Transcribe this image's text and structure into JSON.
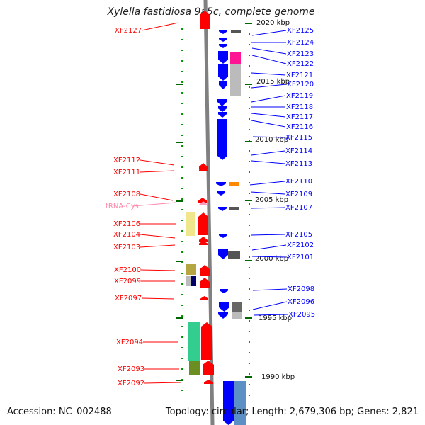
{
  "title": "Xylella fastidiosa 9a5c, complete genome",
  "accession_text": "Accession: NC_002488",
  "topology_text": "Topology: circular; Length: 2,679,306 bp; Genes: 2,821",
  "scale_labels": [
    "2020 kbp",
    "2015 kbp",
    "2010 kbp",
    "2005 kbp",
    "2000 kbp",
    "1995 kbp",
    "1990 kbp"
  ],
  "colors": {
    "forward_gene": "#ff0000",
    "reverse_gene": "#0000ff",
    "trna_label": "#ff88aa",
    "tick": "#006600",
    "backbone": "#808080"
  },
  "left_labels": [
    "XF2127",
    "XF2112",
    "XF2111",
    "XF2108",
    "tRNA-Cys",
    "XF2106",
    "XF2104",
    "XF2103",
    "XF2100",
    "XF2099",
    "XF2097",
    "XF2094",
    "XF2093",
    "XF2092"
  ],
  "right_labels": [
    "XF2125",
    "XF2124",
    "XF2123",
    "XF2122",
    "XF2121",
    "XF2120",
    "XF2119",
    "XF2118",
    "XF2117",
    "XF2116",
    "XF2115",
    "XF2114",
    "XF2113",
    "XF2110",
    "XF2109",
    "XF2107",
    "XF2105",
    "XF2102",
    "XF2101",
    "XF2098",
    "XF2096",
    "XF2095"
  ]
}
